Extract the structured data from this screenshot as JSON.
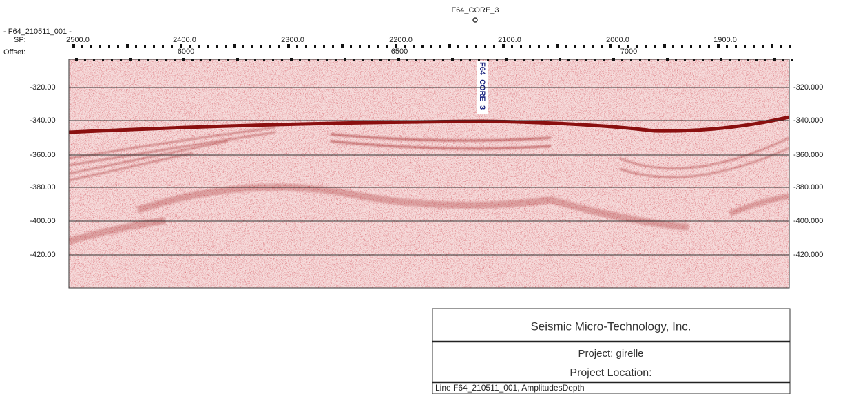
{
  "well_top": {
    "label": "F64_CORE_3"
  },
  "header": {
    "line_name": "- F64_210511_001 -",
    "sp_label": "SP:",
    "offset_label": "Offset:"
  },
  "sp_ticks": [
    "2500.0",
    "2400.0",
    "2300.0",
    "2200.0",
    "2100.0",
    "2000.0",
    "1900.0"
  ],
  "offset_ticks": [
    "6000",
    "6500",
    "7000"
  ],
  "depth_left": [
    "-320.00",
    "-340.00",
    "-360.00",
    "-380.00",
    "-400.00",
    "-420.00"
  ],
  "depth_right": [
    "-320.000",
    "-340.000",
    "-360.000",
    "-380.000",
    "-400.000",
    "-420.000"
  ],
  "well_marker": "F64_CORE_3",
  "title_block": {
    "company": "Seismic Micro-Technology, Inc.",
    "project": "Project: girelle",
    "location": "Project Location:",
    "line": "Line F64_210511_001, AmplitudesDepth"
  }
}
